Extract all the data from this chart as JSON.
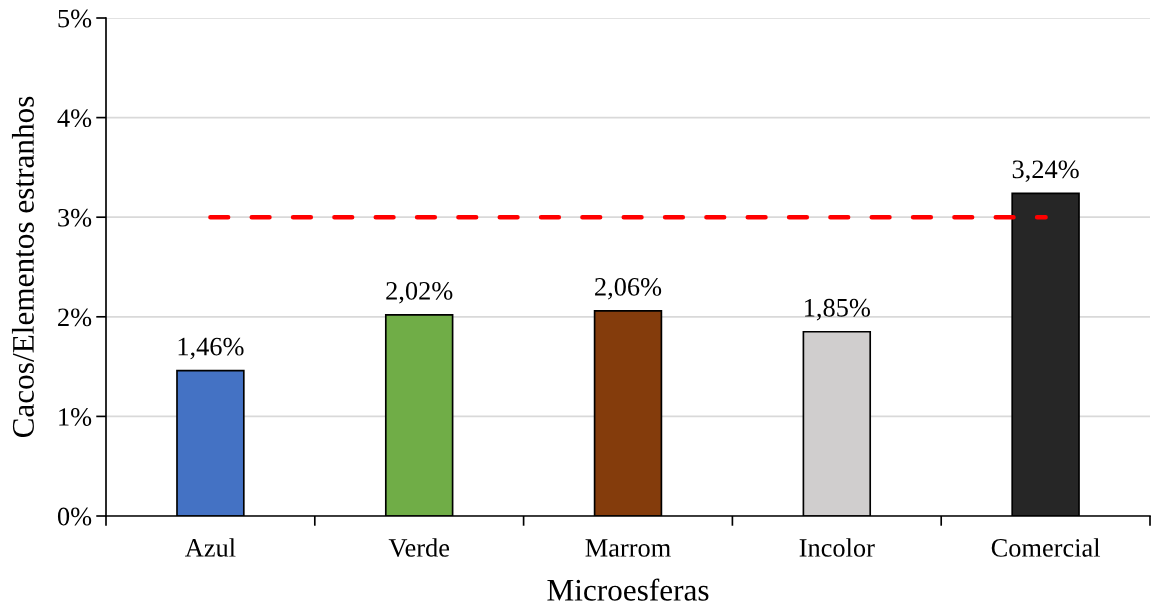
{
  "chart_data": {
    "type": "bar",
    "xlabel": "Microesferas",
    "ylabel": "Cacos/Elementos estranhos",
    "categories": [
      "Azul",
      "Verde",
      "Marrom",
      "Incolor",
      "Comercial"
    ],
    "series": [
      {
        "colors": [
          "#4472c4",
          "#70ad47",
          "#843c0c",
          "#d0cece",
          "#262626"
        ],
        "values": [
          1.46,
          2.02,
          2.06,
          1.85,
          3.24
        ],
        "value_labels": [
          "1,46%",
          "2,02%",
          "2,06%",
          "1,85%",
          "3,24%"
        ]
      },
      {
        "type": "line",
        "color": "#ff0000",
        "line_style": "dashed",
        "values": [
          3,
          3,
          3,
          3,
          3
        ]
      }
    ],
    "ylim": [
      0,
      5
    ],
    "yticks": [
      {
        "value": 0,
        "label": "0%"
      },
      {
        "value": 1,
        "label": "1%"
      },
      {
        "value": 2,
        "label": "2%"
      },
      {
        "value": 3,
        "label": "3%"
      },
      {
        "value": 4,
        "label": "4%"
      },
      {
        "value": 5,
        "label": "5%"
      }
    ],
    "grid": "y"
  }
}
